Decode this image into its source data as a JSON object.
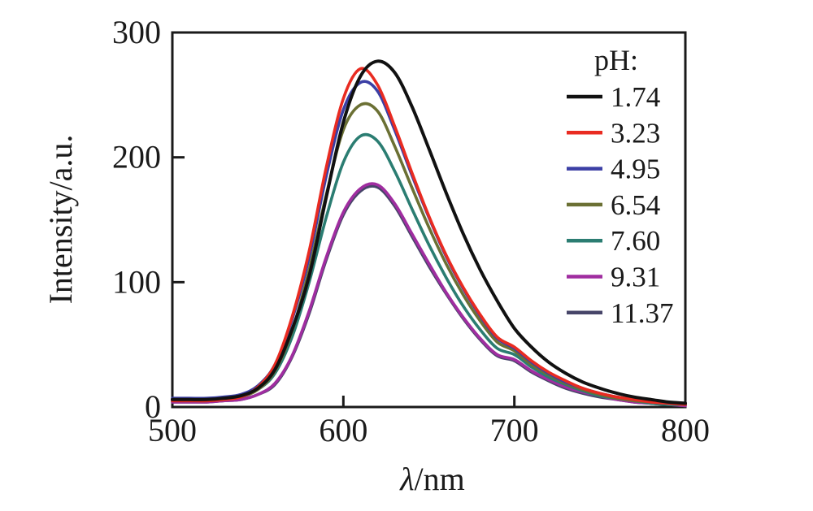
{
  "figure": {
    "background": "#ffffff"
  },
  "chart_data": {
    "type": "line",
    "title": "",
    "xlabel": "λ/nm",
    "ylabel": "Intensity/a.u.",
    "xlim": [
      500,
      800
    ],
    "ylim": [
      0,
      300
    ],
    "xticks": [
      500,
      600,
      700,
      800
    ],
    "yticks": [
      0,
      100,
      200,
      300
    ],
    "grid": false,
    "legend": {
      "title": "pH:",
      "position": "inside-top-right"
    },
    "x": [
      500,
      510,
      520,
      530,
      540,
      550,
      560,
      570,
      580,
      590,
      600,
      610,
      620,
      630,
      640,
      650,
      660,
      670,
      680,
      690,
      700,
      710,
      720,
      730,
      740,
      750,
      760,
      770,
      780,
      790,
      800
    ],
    "series": [
      {
        "name": "1.74",
        "color": "#111111",
        "peak_nm": 620,
        "peak_intensity": 277,
        "values": [
          6,
          6,
          6,
          7,
          9,
          15,
          30,
          62,
          105,
          168,
          228,
          265,
          277,
          268,
          241,
          207,
          172,
          139,
          110,
          85,
          63,
          48,
          36,
          27,
          20,
          15,
          11,
          8,
          6,
          4,
          3
        ]
      },
      {
        "name": "3.23",
        "color": "#e92b21",
        "peak_nm": 608,
        "peak_intensity": 272,
        "values": [
          5,
          5,
          5,
          6,
          8,
          16,
          34,
          72,
          125,
          192,
          247,
          271,
          258,
          225,
          188,
          153,
          122,
          96,
          74,
          56,
          48,
          37,
          28,
          21,
          15,
          11,
          8,
          6,
          4,
          3,
          2
        ]
      },
      {
        "name": "4.95",
        "color": "#3b3fa5",
        "peak_nm": 611,
        "peak_intensity": 261,
        "values": [
          7,
          7,
          7,
          8,
          10,
          17,
          34,
          70,
          120,
          185,
          238,
          260,
          253,
          222,
          186,
          152,
          121,
          95,
          73,
          55,
          47,
          36,
          27,
          20,
          15,
          11,
          8,
          6,
          4,
          3,
          2
        ]
      },
      {
        "name": "6.54",
        "color": "#6b7034",
        "peak_nm": 612,
        "peak_intensity": 243,
        "values": [
          5,
          5,
          5,
          6,
          8,
          14,
          29,
          61,
          110,
          170,
          222,
          242,
          237,
          209,
          176,
          144,
          115,
          90,
          69,
          52,
          45,
          34,
          26,
          19,
          14,
          10,
          7,
          5,
          4,
          3,
          2
        ]
      },
      {
        "name": "7.60",
        "color": "#2b7d72",
        "peak_nm": 612,
        "peak_intensity": 218,
        "values": [
          6,
          6,
          6,
          7,
          9,
          14,
          27,
          56,
          100,
          152,
          196,
          217,
          213,
          189,
          159,
          130,
          104,
          81,
          62,
          47,
          42,
          32,
          24,
          18,
          13,
          9,
          7,
          5,
          3,
          2,
          2
        ]
      },
      {
        "name": "9.31",
        "color": "#a02da0",
        "peak_nm": 616,
        "peak_intensity": 178,
        "values": [
          4,
          4,
          4,
          5,
          6,
          10,
          19,
          41,
          77,
          120,
          156,
          175,
          178,
          163,
          139,
          115,
          92,
          72,
          55,
          42,
          38,
          29,
          22,
          16,
          12,
          9,
          6,
          4,
          3,
          2,
          1
        ]
      },
      {
        "name": "11.37",
        "color": "#474569",
        "peak_nm": 616,
        "peak_intensity": 176,
        "values": [
          4,
          4,
          4,
          5,
          6,
          10,
          18,
          40,
          75,
          118,
          154,
          173,
          176,
          161,
          137,
          113,
          91,
          71,
          54,
          41,
          37,
          28,
          21,
          15,
          11,
          8,
          6,
          4,
          3,
          2,
          1
        ]
      }
    ]
  }
}
